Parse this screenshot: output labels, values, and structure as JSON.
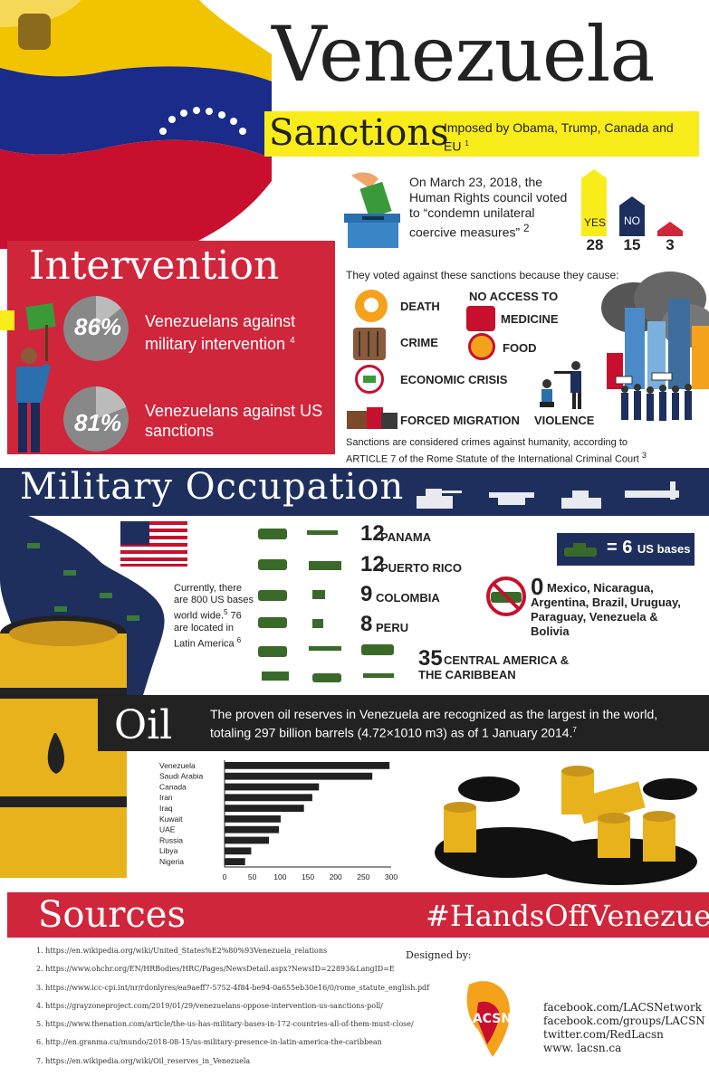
{
  "title": "Venezuela",
  "sanctions": {
    "heading": "Sanctions",
    "subtitle": "Imposed by Obama, Trump, Canada and EU",
    "subtitle_ref": "1",
    "vote_text": "On March 23, 2018, the Human Rights council voted to “condemn unilateral coercive measures”",
    "vote_ref": "2",
    "votes": [
      {
        "label": "YES",
        "count": "28",
        "color": "#f9ec1b"
      },
      {
        "label": "NO",
        "count": "15",
        "color": "#1e2f5e"
      },
      {
        "label": "",
        "count": "3",
        "color": "#d0263b"
      }
    ],
    "against_text": "They voted against these sanctions because they cause:",
    "effects": [
      "DEATH",
      "NO ACCESS TO",
      "MEDICINE",
      "CRIME",
      "FOOD",
      "ECONOMIC CRISIS",
      "FORCED MIGRATION",
      "VIOLENCE"
    ],
    "crimes_text": "Sanctions are considered crimes against humanity, according to ARTICLE 7 of the Rome Statute of the International Criminal Court",
    "crimes_ref": "3"
  },
  "intervention": {
    "heading": "Intervention",
    "stats": [
      {
        "percent": "86%",
        "value": 86,
        "label": "Venezuelans against military intervention",
        "ref": "4"
      },
      {
        "percent": "81%",
        "value": 81,
        "label": "Venezuelans against US sanctions",
        "ref": ""
      }
    ]
  },
  "military": {
    "heading": "Military Occupation",
    "note": "Currently, there are 800 US bases world wide.",
    "note_ref": "5",
    "note2": "76 are located in Latin America",
    "note2_ref": "6",
    "legend_num": "= 6",
    "legend_unit": "US bases",
    "bases": [
      {
        "count": "12",
        "country": "PANAMA"
      },
      {
        "count": "12",
        "country": "PUERTO RICO"
      },
      {
        "count": "9",
        "country": "COLOMBIA"
      },
      {
        "count": "8",
        "country": "PERU"
      },
      {
        "count": "35",
        "country": "CENTRAL AMERICA & THE CARIBBEAN"
      }
    ],
    "none_count": "0",
    "none_countries": "Mexico, Nicaragua, Argentina, Brazil, Uruguay, Paraguay, Venezuela & Bolivia"
  },
  "oil": {
    "heading": "Oil",
    "text": "The proven oil reserves in Venezuela are recognized as the largest in the world, totaling 297 billion barrels (4.72×1010 m3) as of 1 January 2014.",
    "ref": "7"
  },
  "chart_data": {
    "type": "bar",
    "orientation": "horizontal",
    "categories": [
      "Venezuela",
      "Saudi Arabia",
      "Canada",
      "Iran",
      "Iraq",
      "Kuwait",
      "UAE",
      "Russia",
      "Libya",
      "Nigeria"
    ],
    "values": [
      297,
      266,
      170,
      158,
      143,
      101,
      98,
      80,
      48,
      37
    ],
    "xticks": [
      "0",
      "50",
      "100",
      "150",
      "200",
      "250",
      "300"
    ],
    "xlim": [
      0,
      300
    ],
    "title": "",
    "xlabel": "",
    "ylabel": "",
    "bar_color": "#222222"
  },
  "sources": {
    "heading": "Sources",
    "hashtag": "#HandsOffVenezuela",
    "items": [
      "1. https://en.wikipedia.org/wiki/United_States%E2%80%93Venezuela_relations",
      "2. https://www.ohchr.org/EN/HRBodies/HRC/Pages/NewsDetail.aspx?NewsID=22893&LangID=E",
      "3. https://www.icc-cpi.int/nr/rdonlyres/ea9aeff7-5752-4f84-be94-0a655eb30e16/0/rome_statute_english.pdf",
      "4. https://grayzoneproject.com/2019/01/29/venezuelans-oppose-intervention-us-sanctions-poll/",
      "5. https://www.thenation.com/article/the-us-has-military-bases-in-172-countries-all-of-them-must-close/",
      "6. http://en.granma.cu/mundo/2018-08-15/us-military-presence-in-latin-america-the-caribbean",
      "7. https://en.wikipedia.org/wiki/Oil_reserves_in_Venezuela"
    ],
    "designed_by": "Designed by:",
    "logo_text": "LATIN AMERICAN AND CARIBBEAN SOLIDARITY NETWORK",
    "logo_abbr": "LACSN",
    "social": [
      "facebook.com/LACSNetwork",
      "facebook.com/groups/LACSN",
      "twitter.com/RedLacsn",
      "www. lacsn.ca"
    ]
  }
}
